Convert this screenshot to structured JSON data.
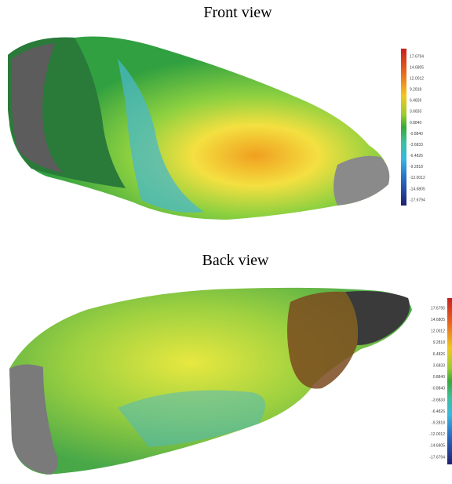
{
  "panels": [
    {
      "title": "Front view",
      "scale": [
        "17.6794",
        "14.6805",
        "12.0012",
        "9.2818",
        "6.4826",
        "3.6833",
        "0.8840",
        "-0.8840",
        "-3.6833",
        "-6.4826",
        "-9.2818",
        "-12.0012",
        "-14.6805",
        "-17.6794"
      ]
    },
    {
      "title": "Back view",
      "scale": [
        "17.6795",
        "14.6805",
        "12.0012",
        "9.2818",
        "6.4826",
        "3.6833",
        "0.8840",
        "-0.8840",
        "-3.6833",
        "-6.4826",
        "-9.2818",
        "-12.0012",
        "-14.6805",
        "-17.6794"
      ]
    }
  ]
}
